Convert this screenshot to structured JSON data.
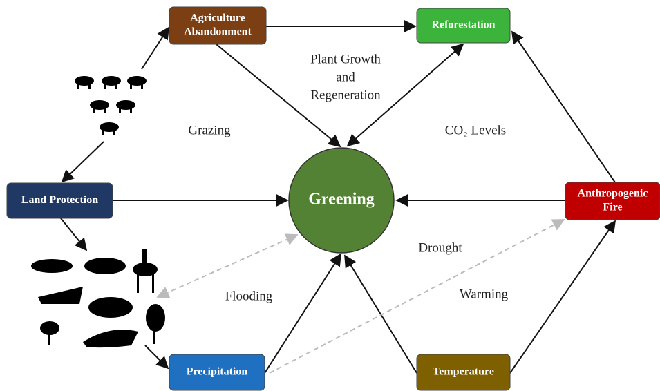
{
  "center": {
    "label": "Greening"
  },
  "nodes": [
    {
      "label": [
        "Agriculture",
        "Abandonment"
      ]
    },
    {
      "label": [
        "Reforestation"
      ]
    },
    {
      "label": [
        "Land Protection"
      ]
    },
    {
      "label": [
        "Anthropogenic",
        "Fire"
      ]
    },
    {
      "label": [
        "Precipitation"
      ]
    },
    {
      "label": [
        "Temperature"
      ]
    }
  ],
  "edge_labels": [
    {
      "lines": [
        "Plant Growth",
        "and",
        "Regeneration"
      ]
    },
    {
      "lines": [
        "Grazing"
      ]
    },
    {
      "lines": [
        "CO₂ Levels"
      ]
    },
    {
      "lines": [
        "Drought"
      ]
    },
    {
      "lines": [
        "Flooding"
      ]
    },
    {
      "lines": [
        "Warming"
      ]
    }
  ]
}
